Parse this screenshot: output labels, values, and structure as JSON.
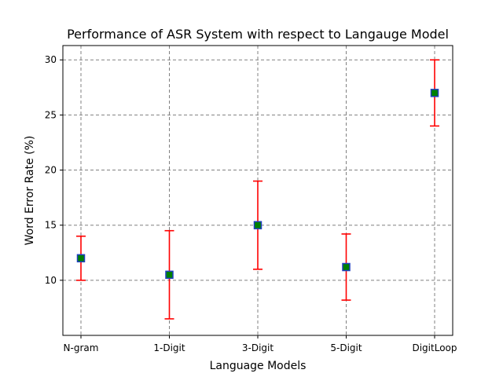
{
  "chart_data": {
    "type": "scatter",
    "title": "Performance of ASR System with respect to Langauge Model",
    "xlabel": "Language Models",
    "ylabel": "Word Error Rate (%)",
    "categories": [
      "N-gram",
      "1-Digit",
      "3-Digit",
      "5-Digit",
      "DigitLoop"
    ],
    "values": [
      12,
      10.5,
      15,
      11.2,
      27
    ],
    "error_low": [
      10,
      6.5,
      11,
      8.2,
      24
    ],
    "error_high": [
      14,
      14.5,
      19,
      14.2,
      30
    ],
    "yticks": [
      10,
      15,
      20,
      25,
      30
    ],
    "ylim": [
      5,
      31.3
    ],
    "grid": true,
    "colors": {
      "marker_fill": "#008000",
      "marker_edge": "#1f3fbf",
      "error_bar": "#ff0000",
      "grid": "#808080",
      "axes": "#000000"
    }
  }
}
